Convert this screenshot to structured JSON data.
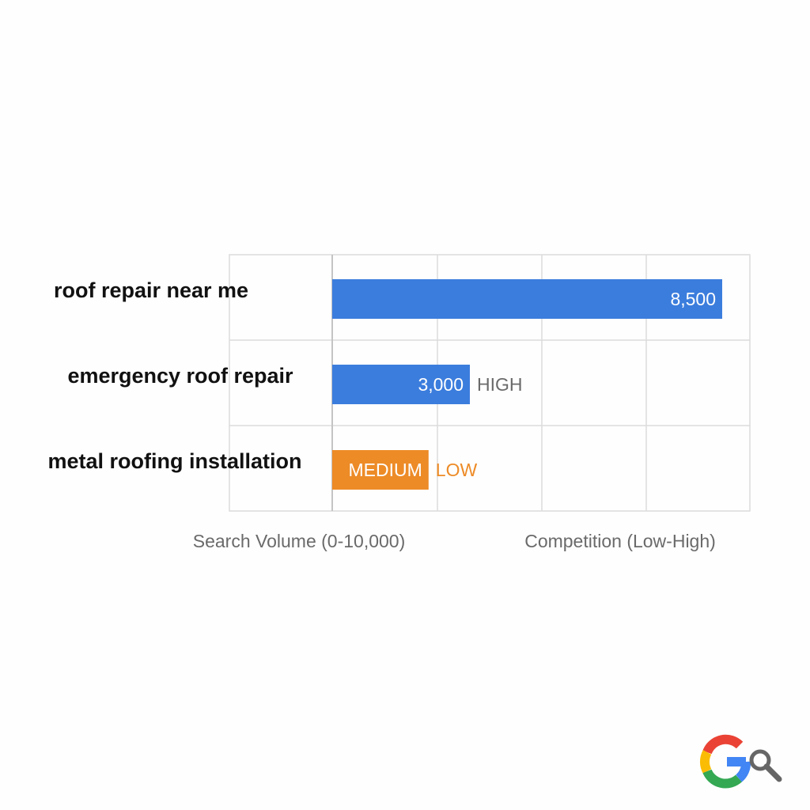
{
  "chart_data": {
    "type": "bar",
    "orientation": "horizontal",
    "categories": [
      "roof repair near me",
      "emergency roof repair",
      "metal roofing installation"
    ],
    "values": [
      8500,
      3000,
      2100
    ],
    "bar_labels": [
      "8,500",
      "3,000",
      "MEDIUM"
    ],
    "competition": [
      "",
      "HIGH",
      "LOW"
    ],
    "bar_colors": [
      "#3b7ddd",
      "#3b7ddd",
      "#ed8b27"
    ],
    "competition_colors": [
      "#6a6a6a",
      "#6a6a6a",
      "#ed8b27"
    ],
    "xlim": [
      0,
      10000
    ],
    "xlabel": "Search Volume (0-10,000)",
    "x2label": "Competition (Low-High)",
    "grid": true,
    "legend": "none"
  },
  "logo": {
    "name": "google-search-logo",
    "colors": [
      "#4285f4",
      "#ea4335",
      "#fbbc05",
      "#34a853"
    ]
  }
}
